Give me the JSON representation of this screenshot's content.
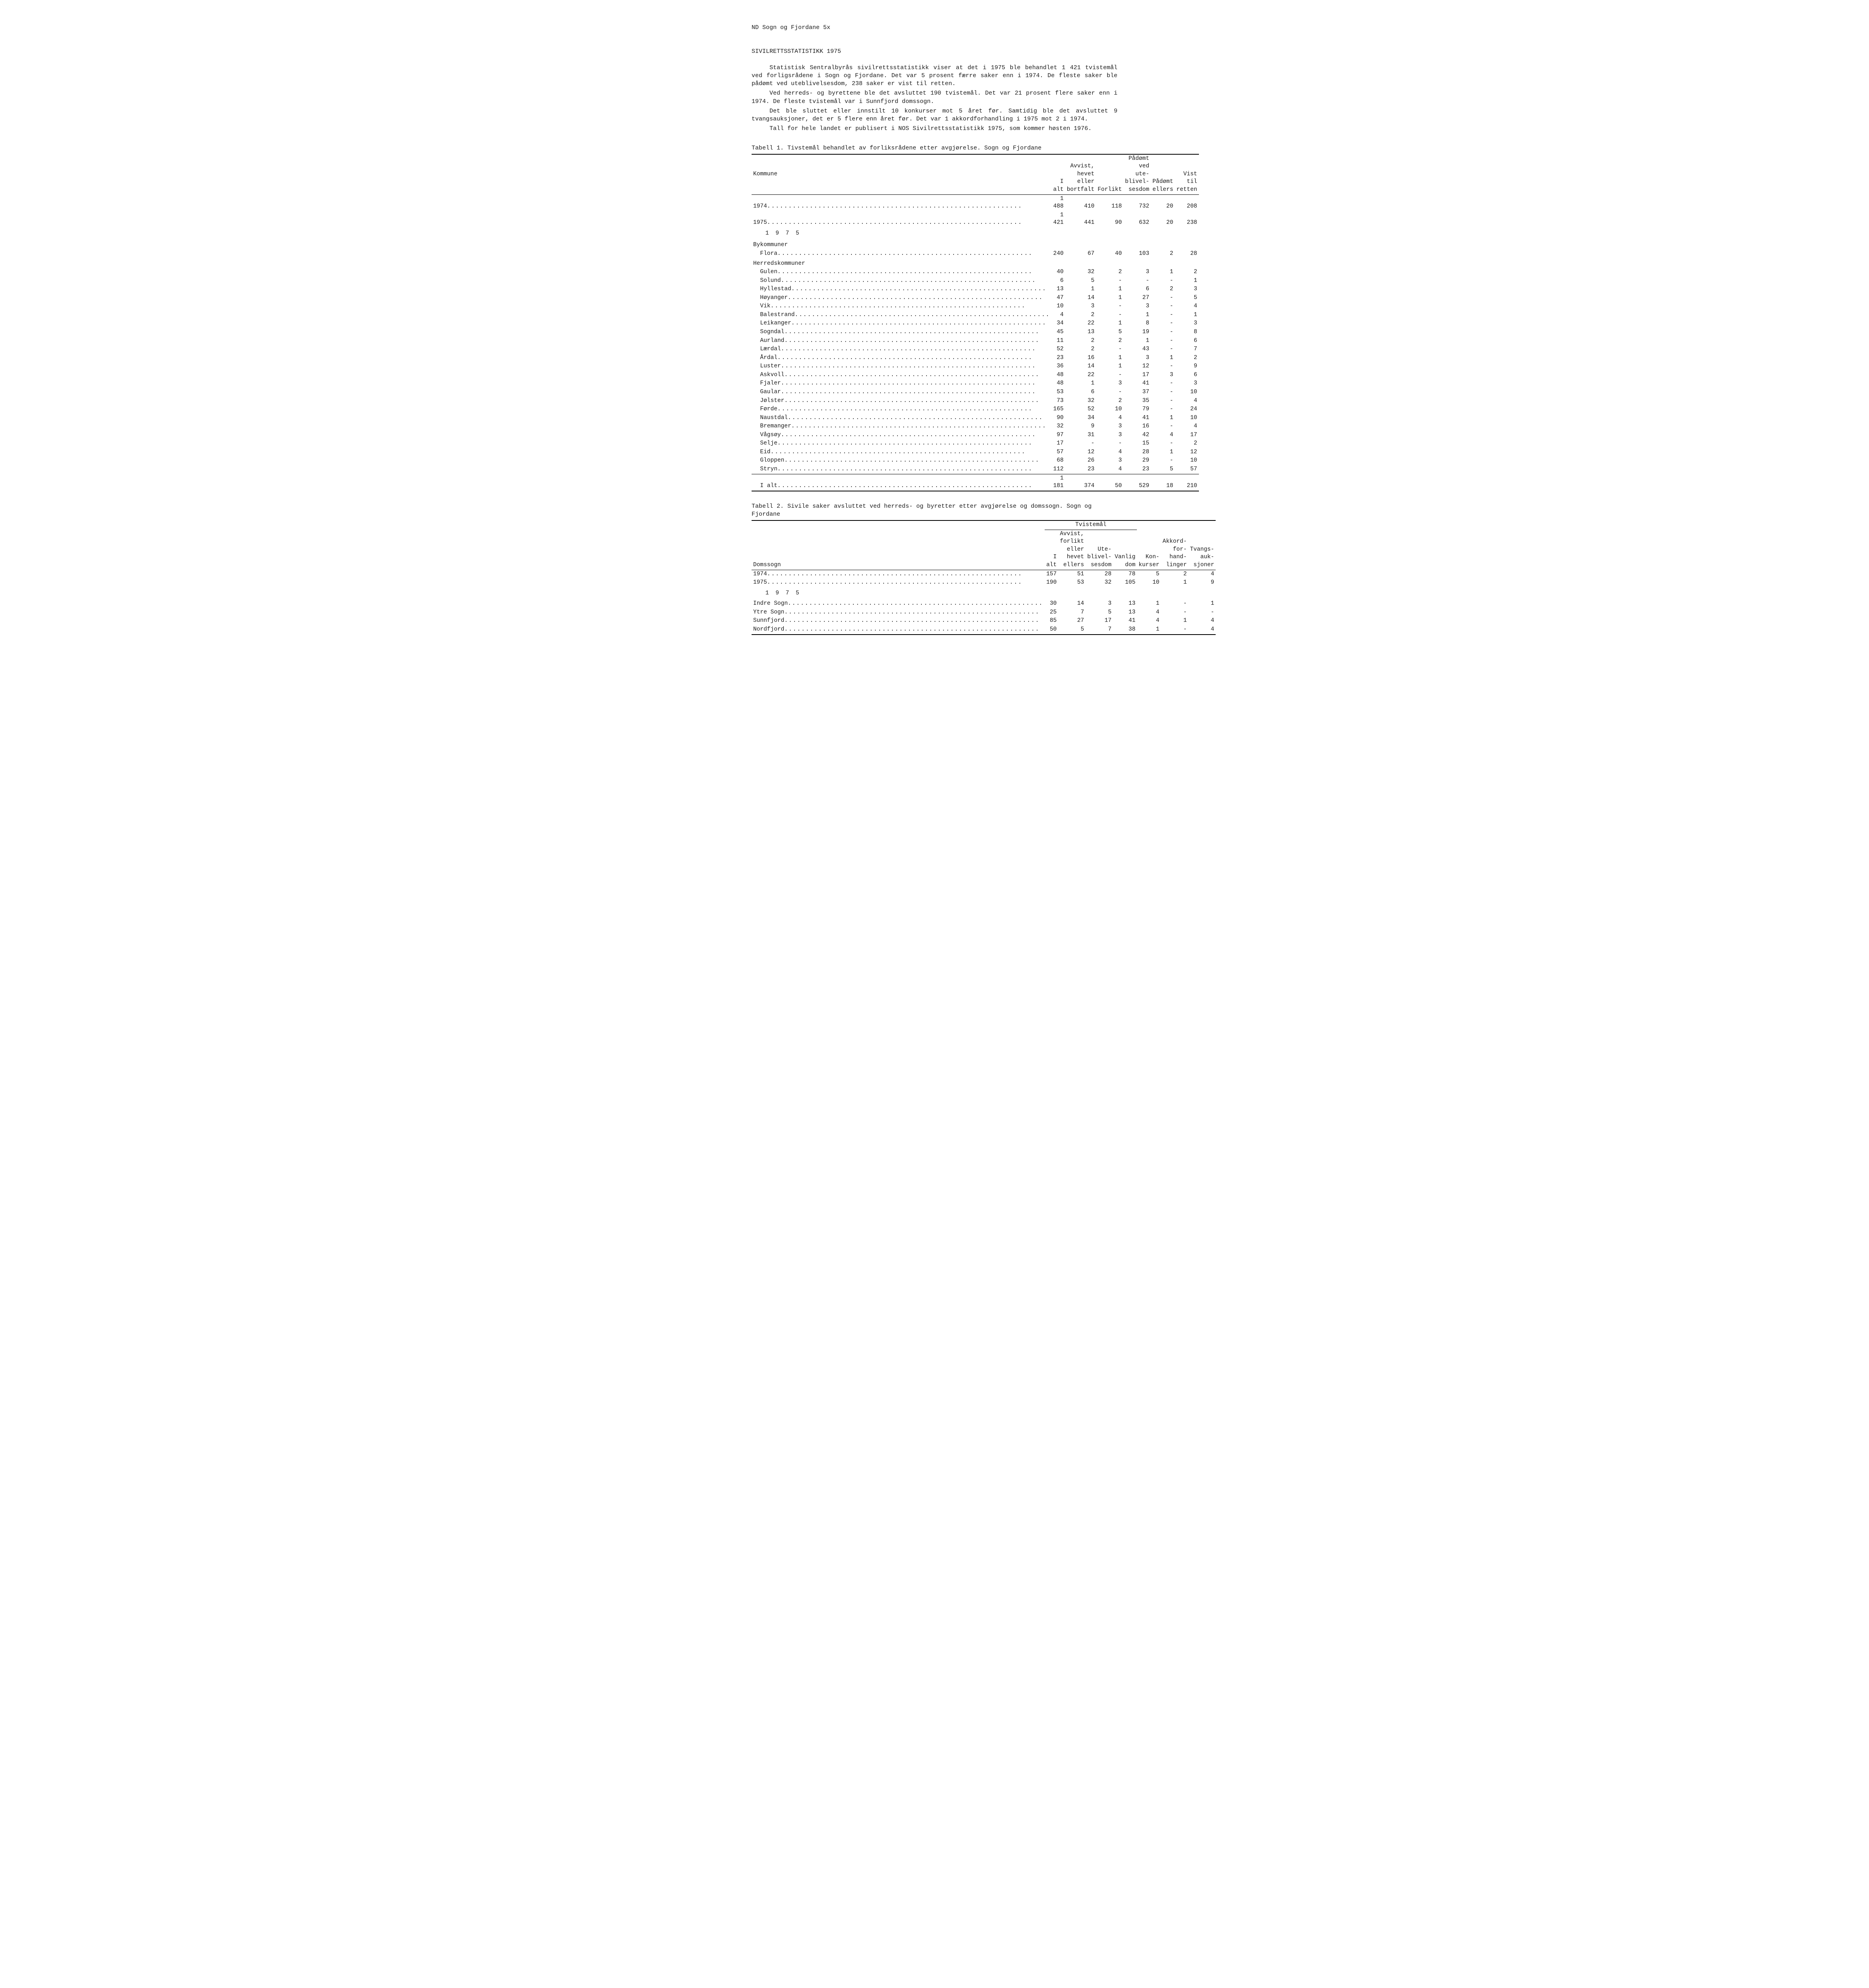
{
  "header": "ND  Sogn og Fjordane  5x",
  "title": "SIVILRETTSSTATISTIKK 1975",
  "paragraphs": [
    "Statistisk Sentralbyrås sivilrettsstatistikk viser at det i 1975 ble behandlet 1 421 tvistemål ved forligsrådene i Sogn og Fjordane.  Det var 5 prosent færre saker enn i 1974.  De fleste saker ble pådømt ved uteblivelsesdom, 238 saker er vist til retten.",
    "Ved herreds- og byrettene ble det avsluttet 190 tvistemål.  Det var 21 prosent flere saker enn i 1974.  De fleste tvistemål var i Sunnfjord domssogn.",
    "Det ble sluttet eller innstilt 10 konkurser mot 5 året før.  Samtidig ble det avsluttet 9 tvangsauksjoner, det er 5 flere enn året før.  Det var 1 akkordforhandling i 1975 mot 2 i 1974.",
    "Tall for hele landet er publisert i NOS Sivilrettsstatistikk 1975, som kommer høsten 1976."
  ],
  "table1": {
    "caption": "Tabell 1.  Tivstemål behandlet av forliksrådene etter avgjørelse.  Sogn og Fjordane",
    "columns": [
      "Kommune",
      "I alt",
      "Avvist,\nhevet\neller\nbortfalt",
      "Forlikt",
      "Pådømt\nved ute-\nblivel-\nsesdom",
      "Pådømt\nellers",
      "Vist til\nretten"
    ],
    "top_rows": [
      {
        "label": "1974",
        "vals": [
          "1 488",
          "410",
          "118",
          "732",
          "20",
          "208"
        ]
      },
      {
        "label": "1975",
        "vals": [
          "1 421",
          "441",
          "90",
          "632",
          "20",
          "238"
        ]
      }
    ],
    "year_label": "1 9 7 5",
    "groups": [
      {
        "header": "Bykommuner",
        "rows": [
          {
            "label": "Flora",
            "vals": [
              "240",
              "67",
              "40",
              "103",
              "2",
              "28"
            ]
          }
        ]
      },
      {
        "header": "Herredskommuner",
        "rows": [
          {
            "label": "Gulen",
            "vals": [
              "40",
              "32",
              "2",
              "3",
              "1",
              "2"
            ]
          },
          {
            "label": "Solund",
            "vals": [
              "6",
              "5",
              "-",
              "-",
              "-",
              "1"
            ]
          },
          {
            "label": "Hyllestad",
            "vals": [
              "13",
              "1",
              "1",
              "6",
              "2",
              "3"
            ]
          },
          {
            "label": "Høyanger",
            "vals": [
              "47",
              "14",
              "1",
              "27",
              "-",
              "5"
            ]
          },
          {
            "label": "Vik",
            "vals": [
              "10",
              "3",
              "-",
              "3",
              "-",
              "4"
            ]
          },
          {
            "label": "Balestrand",
            "vals": [
              "4",
              "2",
              "-",
              "1",
              "-",
              "1"
            ]
          },
          {
            "label": "Leikanger",
            "vals": [
              "34",
              "22",
              "1",
              "8",
              "-",
              "3"
            ]
          },
          {
            "label": "Sogndal",
            "vals": [
              "45",
              "13",
              "5",
              "19",
              "-",
              "8"
            ]
          },
          {
            "label": "Aurland",
            "vals": [
              "11",
              "2",
              "2",
              "1",
              "-",
              "6"
            ]
          },
          {
            "label": "Lærdal",
            "vals": [
              "52",
              "2",
              "-",
              "43",
              "-",
              "7"
            ]
          },
          {
            "label": "Årdal",
            "vals": [
              "23",
              "16",
              "1",
              "3",
              "1",
              "2"
            ]
          },
          {
            "label": "Luster",
            "vals": [
              "36",
              "14",
              "1",
              "12",
              "-",
              "9"
            ]
          },
          {
            "label": "Askvoll",
            "vals": [
              "48",
              "22",
              "-",
              "17",
              "3",
              "6"
            ]
          },
          {
            "label": "Fjaler",
            "vals": [
              "48",
              "1",
              "3",
              "41",
              "-",
              "3"
            ]
          },
          {
            "label": "Gaular",
            "vals": [
              "53",
              "6",
              "-",
              "37",
              "-",
              "10"
            ]
          },
          {
            "label": "Jølster",
            "vals": [
              "73",
              "32",
              "2",
              "35",
              "-",
              "4"
            ]
          },
          {
            "label": "Førde",
            "vals": [
              "165",
              "52",
              "10",
              "79",
              "-",
              "24"
            ]
          },
          {
            "label": "Naustdal",
            "vals": [
              "90",
              "34",
              "4",
              "41",
              "1",
              "10"
            ]
          },
          {
            "label": "Bremanger",
            "vals": [
              "32",
              "9",
              "3",
              "16",
              "-",
              "4"
            ]
          },
          {
            "label": "Vågsøy",
            "vals": [
              "97",
              "31",
              "3",
              "42",
              "4",
              "17"
            ]
          },
          {
            "label": "Selje",
            "vals": [
              "17",
              "-",
              "-",
              "15",
              "-",
              "2"
            ]
          },
          {
            "label": "Eid",
            "vals": [
              "57",
              "12",
              "4",
              "28",
              "1",
              "12"
            ]
          },
          {
            "label": "Gloppen",
            "vals": [
              "68",
              "26",
              "3",
              "29",
              "-",
              "10"
            ]
          },
          {
            "label": "Stryn",
            "vals": [
              "112",
              "23",
              "4",
              "23",
              "5",
              "57"
            ]
          }
        ]
      }
    ],
    "total": {
      "label": "I alt",
      "vals": [
        "1 181",
        "374",
        "50",
        "529",
        "18",
        "210"
      ]
    }
  },
  "table2": {
    "caption": "Tabell 2.  Sivile saker avsluttet ved herreds- og byretter etter avgjørelse og domssogn.  Sogn og Fjordane",
    "span_header": "Tvistemål",
    "columns": [
      "Domssogn",
      "I alt",
      "Avvist,\nforlikt\neller\nhevet\nellers",
      "Ute-\nblivel-\nsesdom",
      "Vanlig\ndom",
      "Kon-\nkurser",
      "Akkord-\nfor-\nhand-\nlinger",
      "Tvangs-\nauk-\nsjoner"
    ],
    "top_rows": [
      {
        "label": "1974",
        "vals": [
          "157",
          "51",
          "28",
          "78",
          "5",
          "2",
          "4"
        ]
      },
      {
        "label": "1975",
        "vals": [
          "190",
          "53",
          "32",
          "105",
          "10",
          "1",
          "9"
        ]
      }
    ],
    "year_label": "1 9 7 5",
    "rows": [
      {
        "label": "Indre Sogn",
        "vals": [
          "30",
          "14",
          "3",
          "13",
          "1",
          "-",
          "1"
        ]
      },
      {
        "label": "Ytre Sogn",
        "vals": [
          "25",
          "7",
          "5",
          "13",
          "4",
          "-",
          "-"
        ]
      },
      {
        "label": "Sunnfjord",
        "vals": [
          "85",
          "27",
          "17",
          "41",
          "4",
          "1",
          "4"
        ]
      },
      {
        "label": "Nordfjord",
        "vals": [
          "50",
          "5",
          "7",
          "38",
          "1",
          "-",
          "4"
        ]
      }
    ]
  }
}
